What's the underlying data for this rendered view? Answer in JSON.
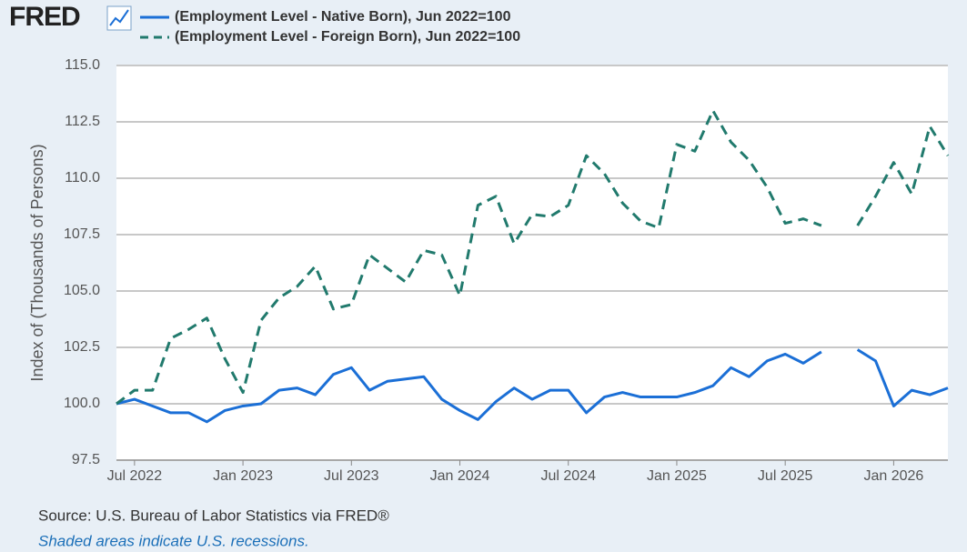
{
  "logo": "FRED",
  "chart_data": {
    "type": "line",
    "y_label": "Index of (Thousands of Persons)",
    "source": "Source: U.S. Bureau of Labor Statistics via FRED®",
    "note": "Shaded areas indicate U.S. recessions.",
    "x": [
      "2022-06",
      "2022-07",
      "2022-08",
      "2022-09",
      "2022-10",
      "2022-11",
      "2022-12",
      "2023-01",
      "2023-02",
      "2023-03",
      "2023-04",
      "2023-05",
      "2023-06",
      "2023-07",
      "2023-08",
      "2023-09",
      "2023-10",
      "2023-11",
      "2023-12",
      "2024-01",
      "2024-02",
      "2024-03",
      "2024-04",
      "2024-05",
      "2024-06",
      "2024-07",
      "2024-08",
      "2024-09",
      "2024-10",
      "2024-11",
      "2024-12",
      "2025-01",
      "2025-02",
      "2025-03",
      "2025-04",
      "2025-05",
      "2025-06",
      "2025-07",
      "2025-08",
      "2025-09",
      "2025-10",
      "2025-11",
      "2025-12",
      "2026-01",
      "2026-02",
      "2026-03",
      "2026-04"
    ],
    "series": [
      {
        "name": "(Employment Level - Native Born), Jun 2022=100",
        "color": "#1b6fd6",
        "dashed": false,
        "values": [
          100,
          100.2,
          99.9,
          99.6,
          99.6,
          99.2,
          99.7,
          99.9,
          100.0,
          100.6,
          100.7,
          100.4,
          101.3,
          101.6,
          100.6,
          101.0,
          101.1,
          101.2,
          100.2,
          99.7,
          99.3,
          100.1,
          100.7,
          100.2,
          100.6,
          100.6,
          99.6,
          100.3,
          100.5,
          100.3,
          100.3,
          100.3,
          100.5,
          100.8,
          101.6,
          101.2,
          101.9,
          102.2,
          101.8,
          102.3,
          null,
          102.4,
          101.9,
          99.9,
          100.6,
          100.4,
          100.7
        ]
      },
      {
        "name": "(Employment Level - Foreign Born), Jun 2022=100",
        "color": "#217a6d",
        "dashed": true,
        "values": [
          100,
          100.6,
          100.6,
          102.9,
          103.3,
          103.8,
          102.0,
          100.5,
          103.7,
          104.7,
          105.2,
          106.1,
          104.2,
          104.4,
          106.6,
          106.0,
          105.4,
          106.8,
          106.6,
          104.8,
          108.8,
          109.2,
          107.1,
          108.4,
          108.3,
          108.8,
          111.0,
          110.2,
          108.9,
          108.1,
          107.8,
          111.5,
          111.2,
          113.0,
          111.6,
          110.8,
          109.6,
          108.0,
          108.2,
          107.9,
          null,
          107.9,
          109.2,
          110.7,
          109.3,
          112.3,
          111.0
        ]
      }
    ],
    "xlim": [
      "2022-06",
      "2026-04"
    ],
    "xticks": [
      {
        "value": "2022-07",
        "label": "Jul 2022"
      },
      {
        "value": "2023-01",
        "label": "Jan 2023"
      },
      {
        "value": "2023-07",
        "label": "Jul 2023"
      },
      {
        "value": "2024-01",
        "label": "Jan 2024"
      },
      {
        "value": "2024-07",
        "label": "Jul 2024"
      },
      {
        "value": "2025-01",
        "label": "Jan 2025"
      },
      {
        "value": "2025-07",
        "label": "Jul 2025"
      },
      {
        "value": "2026-01",
        "label": "Jan 2026"
      }
    ],
    "ylim": [
      97.5,
      115
    ],
    "yticks": [
      {
        "value": 97.5,
        "label": "97.5"
      },
      {
        "value": 100,
        "label": "100.0"
      },
      {
        "value": 102.5,
        "label": "102.5"
      },
      {
        "value": 105,
        "label": "105.0"
      },
      {
        "value": 107.5,
        "label": "107.5"
      },
      {
        "value": 110,
        "label": "110.0"
      },
      {
        "value": 112.5,
        "label": "112.5"
      },
      {
        "value": 115,
        "label": "115.0"
      }
    ],
    "grid": true
  }
}
